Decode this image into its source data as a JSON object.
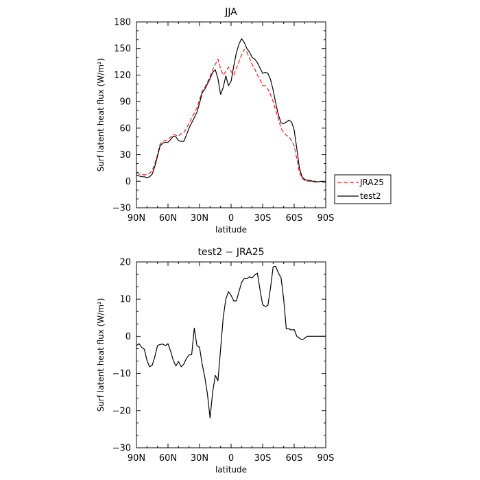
{
  "chart_data": [
    {
      "type": "line",
      "title": "JJA",
      "xlabel": "latitude",
      "ylabel": "Surf latent heat flux (W/m²)",
      "ylim": [
        -30,
        180
      ],
      "yticks": [
        -30,
        0,
        30,
        60,
        90,
        120,
        150,
        180
      ],
      "xlim": [
        90,
        -90
      ],
      "xticks": [
        90,
        60,
        30,
        0,
        -30,
        -60,
        -90
      ],
      "xtick_labels": [
        "90N",
        "60N",
        "30N",
        "0",
        "30S",
        "60S",
        "90S"
      ],
      "grid": false,
      "legend_position": "right",
      "series": [
        {
          "name": "JRA25",
          "color": "#e0201b",
          "style": "dashed",
          "x": [
            90,
            87.5,
            85,
            82.5,
            80,
            77.5,
            75,
            72.5,
            70,
            67.5,
            65,
            62.5,
            60,
            57.5,
            55,
            52.5,
            50,
            47.5,
            45,
            42.5,
            40,
            37.5,
            35,
            32.5,
            30,
            27.5,
            25,
            22.5,
            20,
            17.5,
            15,
            12.5,
            10,
            7.5,
            5,
            2.5,
            0,
            -2.5,
            -5,
            -7.5,
            -10,
            -12.5,
            -15,
            -17.5,
            -20,
            -22.5,
            -25,
            -27.5,
            -30,
            -32.5,
            -35,
            -37.5,
            -40,
            -42.5,
            -45,
            -47.5,
            -50,
            -52.5,
            -55,
            -57.5,
            -60,
            -62.5,
            -65,
            -67.5,
            -70,
            -72.5,
            -75,
            -77.5,
            -80,
            -82.5,
            -85,
            -87.5,
            -90
          ],
          "values": [
            9,
            8,
            8,
            7,
            8,
            9,
            12,
            20,
            30,
            42,
            45,
            46,
            47,
            50,
            53,
            52,
            51,
            54,
            55,
            60,
            65,
            72,
            77,
            83,
            92,
            102,
            106,
            112,
            118,
            126,
            132,
            138,
            127,
            120,
            124,
            129,
            124,
            120,
            128,
            135,
            143,
            149,
            146,
            139,
            132,
            127,
            120,
            115,
            108,
            108,
            104,
            98,
            90,
            80,
            70,
            60,
            55,
            52,
            50,
            46,
            40,
            25,
            10,
            3,
            1,
            0,
            0,
            -1,
            -1,
            0,
            0,
            -1,
            -1
          ]
        },
        {
          "name": "test2",
          "color": "#000000",
          "style": "solid",
          "x": [
            90,
            87.5,
            85,
            82.5,
            80,
            77.5,
            75,
            72.5,
            70,
            67.5,
            65,
            62.5,
            60,
            57.5,
            55,
            52.5,
            50,
            47.5,
            45,
            42.5,
            40,
            37.5,
            35,
            32.5,
            30,
            27.5,
            25,
            22.5,
            20,
            17.5,
            15,
            12.5,
            10,
            7.5,
            5,
            2.5,
            0,
            -2.5,
            -5,
            -7.5,
            -10,
            -12.5,
            -15,
            -17.5,
            -20,
            -22.5,
            -25,
            -27.5,
            -30,
            -32.5,
            -35,
            -37.5,
            -40,
            -42.5,
            -45,
            -47.5,
            -50,
            -52.5,
            -55,
            -57.5,
            -60,
            -62.5,
            -65,
            -67.5,
            -70,
            -72.5,
            -75,
            -77.5,
            -80,
            -82.5,
            -85,
            -87.5,
            -90
          ],
          "values": [
            7,
            6,
            5,
            5,
            4,
            5,
            8,
            17,
            28,
            40,
            43,
            44,
            44,
            47,
            51,
            50,
            46,
            45,
            45,
            52,
            60,
            66,
            72,
            78,
            88,
            100,
            104,
            110,
            116,
            123,
            126,
            116,
            98,
            106,
            119,
            108,
            113,
            130,
            145,
            155,
            161,
            157,
            150,
            146,
            140,
            138,
            134,
            128,
            122,
            123,
            122,
            115,
            103,
            88,
            75,
            66,
            65,
            67,
            69,
            67,
            58,
            37,
            15,
            5,
            2,
            1,
            1,
            0,
            0,
            -1,
            0,
            -1,
            -1
          ]
        }
      ],
      "legend": [
        {
          "label": "JRA25",
          "color": "#e0201b",
          "style": "dashed"
        },
        {
          "label": "test2",
          "color": "#000000",
          "style": "solid"
        }
      ]
    },
    {
      "type": "line",
      "title": "test2 − JRA25",
      "xlabel": "latitude",
      "ylabel": "Surf latent heat flux (W/m²)",
      "ylim": [
        -30,
        20
      ],
      "yticks": [
        -30,
        -20,
        -10,
        0,
        10,
        20
      ],
      "xlim": [
        90,
        -90
      ],
      "xticks": [
        90,
        60,
        30,
        0,
        -30,
        -60,
        -90
      ],
      "xtick_labels": [
        "90N",
        "60N",
        "30N",
        "0",
        "30S",
        "60S",
        "90S"
      ],
      "grid": false,
      "series": [
        {
          "name": "test2",
          "color": "#000000",
          "style": "solid",
          "x": [
            90,
            87.5,
            85,
            82.5,
            80,
            77.5,
            75,
            72.5,
            70,
            67.5,
            65,
            62.5,
            60,
            57.5,
            55,
            52.5,
            50,
            47.5,
            45,
            42.5,
            40,
            37.5,
            35,
            32.5,
            30,
            27.5,
            25,
            22.5,
            20,
            17.5,
            15,
            12.5,
            10,
            7.5,
            5,
            2.5,
            0,
            -2.5,
            -5,
            -7.5,
            -10,
            -12.5,
            -15,
            -17.5,
            -20,
            -22.5,
            -25,
            -27.5,
            -30,
            -32.5,
            -35,
            -37.5,
            -40,
            -42.5,
            -45,
            -47.5,
            -50,
            -52.5,
            -55,
            -57.5,
            -60,
            -62.5,
            -65,
            -67.5,
            -70,
            -72.5,
            -75,
            -77.5,
            -80,
            -82.5,
            -85,
            -87.5,
            -90
          ],
          "values": [
            -2.5,
            -2,
            -3,
            -3.5,
            -6.5,
            -8.2,
            -7.8,
            -5.5,
            -2.5,
            -2.2,
            -2.1,
            -2.5,
            -2,
            -4,
            -6.5,
            -8,
            -6.8,
            -8.2,
            -7.5,
            -6,
            -5,
            -5,
            2.2,
            -2.5,
            -3,
            -7.5,
            -11,
            -15.5,
            -22,
            -15,
            -10.5,
            -12,
            -3.5,
            5,
            10,
            12,
            11,
            9.5,
            9.5,
            12,
            14.5,
            15.5,
            15.5,
            16,
            15.7,
            16.5,
            17,
            12.5,
            8.5,
            8,
            8.3,
            13,
            18.7,
            18.8,
            17,
            15.8,
            10,
            2,
            2,
            1.7,
            1.8,
            0,
            -0.5,
            -1,
            -0.5,
            0,
            0,
            0,
            0,
            0,
            0,
            0,
            0
          ]
        }
      ]
    }
  ]
}
